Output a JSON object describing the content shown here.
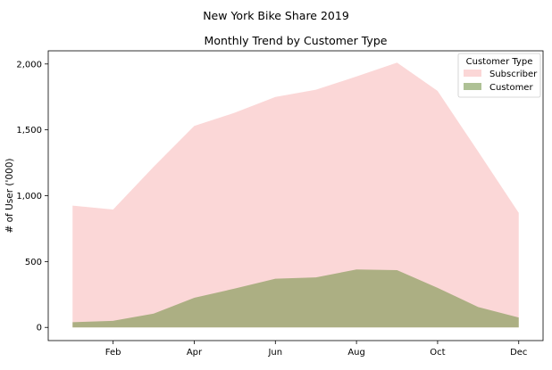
{
  "chart_data": {
    "type": "area",
    "title": "New York Bike Share 2019",
    "subtitle": "Monthly Trend by Customer Type",
    "xlabel": "",
    "ylabel": "# of User ('000)",
    "x": [
      1,
      2,
      3,
      4,
      5,
      6,
      7,
      8,
      9,
      10,
      11,
      12
    ],
    "x_ticks": [
      {
        "x": 2,
        "label": "Feb"
      },
      {
        "x": 4,
        "label": "Apr"
      },
      {
        "x": 6,
        "label": "Jun"
      },
      {
        "x": 8,
        "label": "Aug"
      },
      {
        "x": 10,
        "label": "Oct"
      },
      {
        "x": 12,
        "label": "Dec"
      }
    ],
    "y_ticks": [
      {
        "y": 0,
        "label": "0"
      },
      {
        "y": 500,
        "label": "500"
      },
      {
        "y": 1000,
        "label": "1,000"
      },
      {
        "y": 1500,
        "label": "1,500"
      },
      {
        "y": 2000,
        "label": "2,000"
      }
    ],
    "xlim": [
      0.4,
      12.6
    ],
    "ylim": [
      -100,
      2100
    ],
    "series": [
      {
        "name": "Subscriber",
        "color": "#f8b6b6",
        "opacity": 0.55,
        "values": [
          925,
          895,
          1220,
          1530,
          1630,
          1750,
          1805,
          1905,
          2010,
          1795,
          1335,
          870
        ]
      },
      {
        "name": "Customer",
        "color": "#6b8e3e",
        "opacity": 0.55,
        "values": [
          40,
          50,
          105,
          225,
          295,
          370,
          380,
          440,
          435,
          300,
          155,
          75
        ]
      }
    ],
    "legend": {
      "title": "Customer Type",
      "position": "top-right"
    },
    "grid": false
  }
}
